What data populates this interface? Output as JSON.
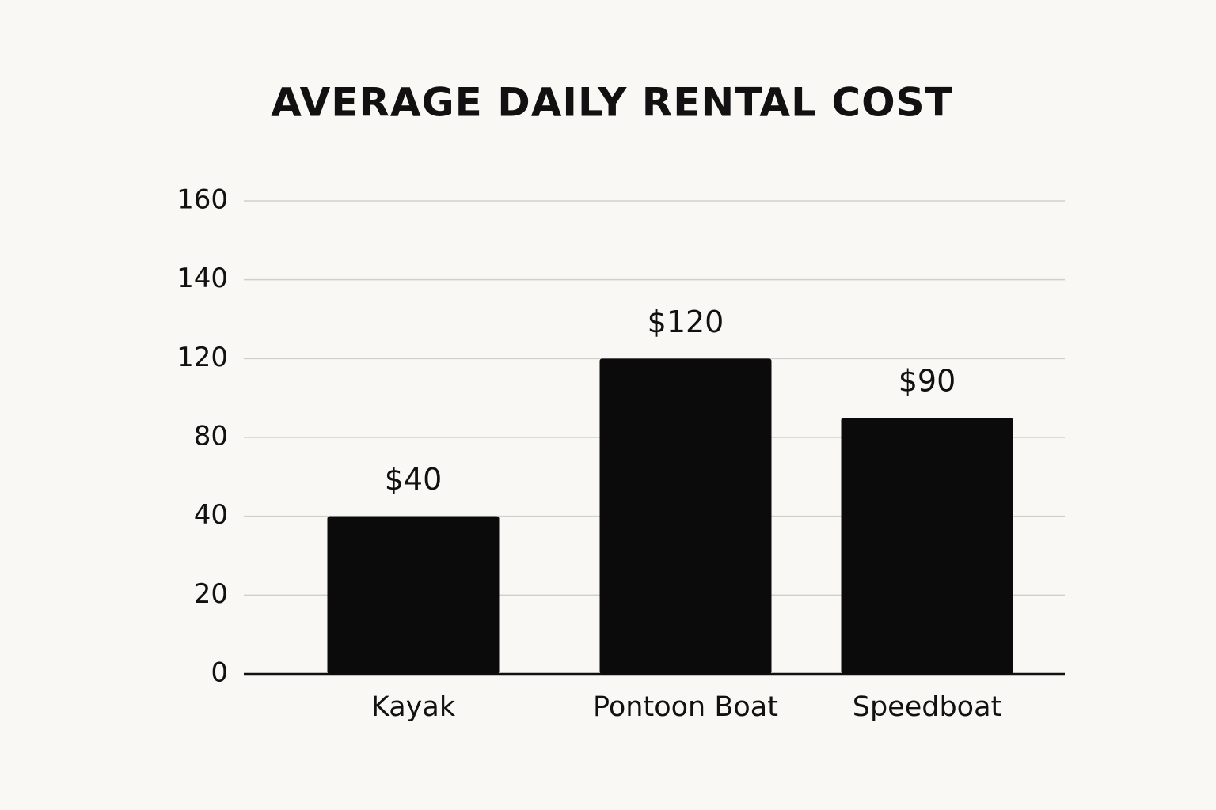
{
  "chart_data": {
    "type": "bar",
    "title": "AVERAGE DAILY RENTAL COST",
    "categories": [
      "Kayak",
      "Pontoon Boat",
      "Speedboat"
    ],
    "values": [
      40,
      120,
      90
    ],
    "value_labels": [
      "$40",
      "$120",
      "$90"
    ],
    "color": "#0a0b0a",
    "ylim": [
      0,
      160
    ],
    "yticks": [
      0,
      20,
      40,
      80,
      120,
      140,
      160
    ],
    "grid": true
  }
}
